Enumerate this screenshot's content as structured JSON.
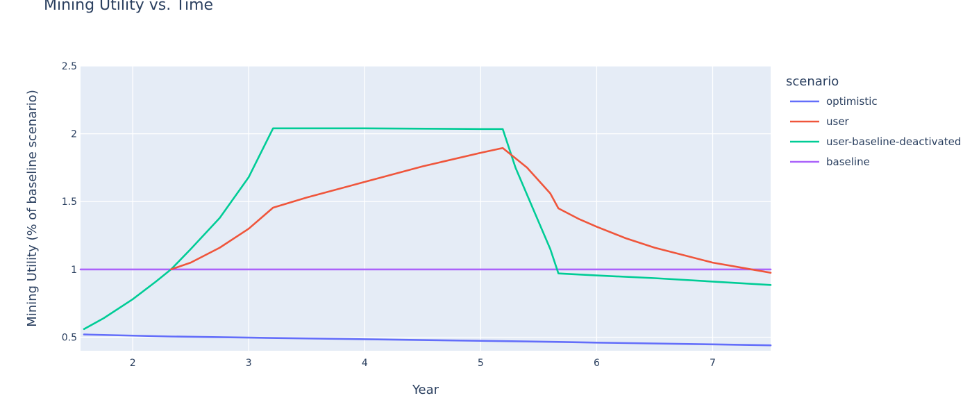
{
  "chart_data": {
    "type": "line",
    "title": "Mining Utility vs. Time",
    "xlabel": "Year",
    "ylabel": "Mining Utility (% of baseline scenario)",
    "xlim": [
      1.55,
      7.5
    ],
    "ylim": [
      0.4,
      2.5
    ],
    "x_ticks": [
      2,
      3,
      4,
      5,
      6,
      7
    ],
    "y_ticks": [
      0.5,
      1,
      1.5,
      2,
      2.5
    ],
    "y_tick_labels": [
      "0.5",
      "1",
      "1.5",
      "2",
      "2.5"
    ],
    "grid": true,
    "plot_background": "#e5ecf6",
    "legend": {
      "title": "scenario",
      "placement": "right"
    },
    "series": [
      {
        "name": "optimistic",
        "color": "#636efa",
        "x": [
          1.58,
          2.33,
          3,
          4,
          5,
          5.67,
          6,
          7,
          7.5
        ],
        "y": [
          0.52,
          0.505,
          0.497,
          0.485,
          0.473,
          0.465,
          0.46,
          0.447,
          0.44
        ]
      },
      {
        "name": "user",
        "color": "#ef553b",
        "x": [
          2.33,
          2.5,
          2.75,
          3,
          3.21,
          3.5,
          4,
          4.5,
          5,
          5.19,
          5.4,
          5.6,
          5.67,
          5.85,
          6,
          6.25,
          6.5,
          7,
          7.5
        ],
        "y": [
          1.0,
          1.05,
          1.16,
          1.3,
          1.455,
          1.53,
          1.645,
          1.76,
          1.86,
          1.895,
          1.75,
          1.56,
          1.45,
          1.37,
          1.315,
          1.23,
          1.16,
          1.05,
          0.975
        ]
      },
      {
        "name": "user-baseline-deactivated",
        "color": "#00cc96",
        "x": [
          1.58,
          1.75,
          2,
          2.2,
          2.33,
          2.5,
          2.75,
          3,
          3.21,
          4,
          5,
          5.19,
          5.3,
          5.45,
          5.6,
          5.67,
          6,
          6.5,
          7,
          7.5
        ],
        "y": [
          0.56,
          0.64,
          0.78,
          0.91,
          1.0,
          1.15,
          1.38,
          1.68,
          2.04,
          2.04,
          2.035,
          2.035,
          1.75,
          1.45,
          1.15,
          0.97,
          0.955,
          0.935,
          0.91,
          0.885
        ]
      },
      {
        "name": "baseline",
        "color": "#ab63fa",
        "x": [
          1.55,
          7.5
        ],
        "y": [
          1.0,
          1.0
        ]
      }
    ],
    "markers": [
      {
        "x": 2.33,
        "color": "#ff6d00"
      },
      {
        "x": 5.67,
        "color": "#ff6d00"
      }
    ]
  }
}
